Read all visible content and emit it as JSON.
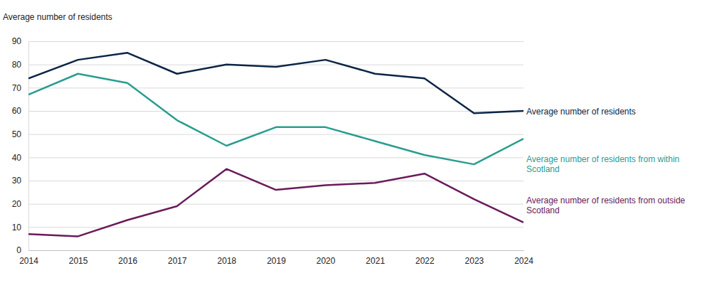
{
  "chart_data": {
    "type": "line",
    "y_label": "Average number of residents",
    "x": [
      2014,
      2015,
      2016,
      2017,
      2018,
      2019,
      2020,
      2021,
      2022,
      2023,
      2024
    ],
    "xlim": [
      2014,
      2024
    ],
    "xticks": [
      2014,
      2015,
      2016,
      2017,
      2018,
      2019,
      2020,
      2021,
      2022,
      2023,
      2024
    ],
    "ylim": [
      0,
      90
    ],
    "yticks": [
      0,
      10,
      20,
      30,
      40,
      50,
      60,
      70,
      80,
      90
    ],
    "grid": true,
    "series": [
      {
        "name": "Average number of residents",
        "color": "#0b2545",
        "values": [
          74,
          82,
          85,
          76,
          80,
          79,
          82,
          76,
          74,
          59,
          60
        ]
      },
      {
        "name": "Average number of residents from within Scotland",
        "color": "#2a9d8f",
        "values": [
          67,
          76,
          72,
          56,
          45,
          53,
          53,
          47,
          41,
          37,
          48
        ]
      },
      {
        "name": "Average number of residents from outside Scotland",
        "color": "#6a1b5a",
        "values": [
          7,
          6,
          13,
          19,
          35,
          26,
          28,
          29,
          33,
          22,
          12
        ]
      }
    ]
  }
}
